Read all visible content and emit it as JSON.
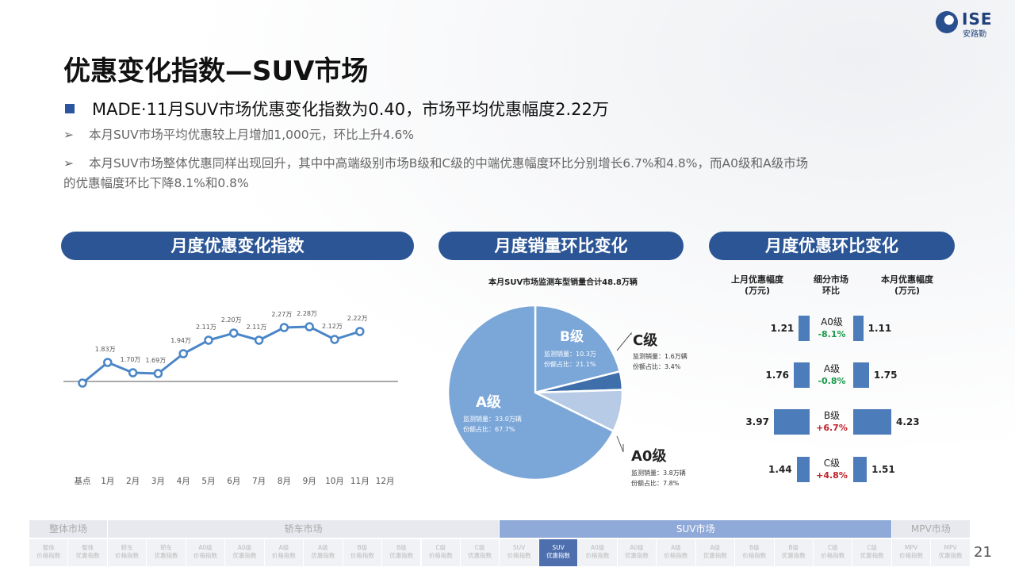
{
  "logo": {
    "brand": "ISE",
    "sub": "安路勤"
  },
  "title": "优惠变化指数—SUV市场",
  "headline": "MADE·11月SUV市场优惠变化指数为0.40，市场平均优惠幅度2.22万",
  "bullets": [
    "本月SUV市场平均优惠较上月增加1,000元，环比上升4.6%",
    "本月SUV市场整体优惠同样出现回升，其中中高端级别市场B级和C级的中端优惠幅度环比分别增长6.7%和4.8%，而A0级和A级市场",
    "的优惠幅度环比下降8.1%和0.8%"
  ],
  "sections": {
    "monthly_index": "月度优惠变化指数",
    "monthly_sales": "月度销量环比变化",
    "monthly_discount": "月度优惠环比变化"
  },
  "chart_data": {
    "type": "line",
    "categories": [
      "基点",
      "1月",
      "2月",
      "3月",
      "4月",
      "5月",
      "6月",
      "7月",
      "8月",
      "9月",
      "10月",
      "11月",
      "12月"
    ],
    "values": [
      1.57,
      1.83,
      1.7,
      1.69,
      1.94,
      2.11,
      2.2,
      2.11,
      2.27,
      2.28,
      2.12,
      2.22,
      null
    ],
    "labels": [
      "",
      "1.83万",
      "1.70万",
      "1.69万",
      "1.94万",
      "2.11万",
      "2.20万",
      "2.11万",
      "2.27万",
      "2.28万",
      "2.12万",
      "2.22万",
      ""
    ],
    "color": "#4a86c7"
  },
  "pie": {
    "caption": "本月SUV市场监测车型销量合计48.8万辆",
    "info_keys": {
      "sales": "监测销量：",
      "share": "份额占比："
    },
    "segments": [
      {
        "name": "B级",
        "sales": "10.3万",
        "share": "21.1%",
        "color": "#7aa6d8"
      },
      {
        "name": "C级",
        "sales": "1.6万辆",
        "share": "3.4%",
        "color": "#3f6faa"
      },
      {
        "name": "A0级",
        "sales": "3.8万辆",
        "share": "7.8%",
        "color": "#b7cbe6"
      },
      {
        "name": "A级",
        "sales": "33.0万辆",
        "share": "67.7%",
        "color": "#7aa6d8"
      }
    ]
  },
  "discount": {
    "headers": {
      "last": "上月优惠幅度\n(万元)",
      "segment": "细分市场\n环比",
      "current": "本月优惠幅度\n(万元)"
    },
    "rows": [
      {
        "name": "A0级",
        "pct": "-8.1%",
        "dir": "neg",
        "last": 1.21,
        "current": 1.11,
        "last_label": "1.21",
        "current_label": "1.11"
      },
      {
        "name": "A级",
        "pct": "-0.8%",
        "dir": "neg",
        "last": 1.76,
        "current": 1.75,
        "last_label": "1.76",
        "current_label": "1.75"
      },
      {
        "name": "B级",
        "pct": "+6.7%",
        "dir": "pos",
        "last": 3.97,
        "current": 4.23,
        "last_label": "3.97",
        "current_label": "4.23"
      },
      {
        "name": "C级",
        "pct": "+4.8%",
        "dir": "pos",
        "last": 1.44,
        "current": 1.51,
        "last_label": "1.44",
        "current_label": "1.51"
      }
    ]
  },
  "nav": {
    "categories": [
      {
        "label": "整体市场",
        "active": false
      },
      {
        "label": "轿车市场",
        "active": false
      },
      {
        "label": "SUV市场",
        "active": true
      },
      {
        "label": "MPV市场",
        "active": false
      }
    ],
    "items": [
      {
        "label": "整体\n价格指数",
        "active": false
      },
      {
        "label": "整体\n优惠指数",
        "active": false
      },
      {
        "label": "轿车\n价格指数",
        "active": false
      },
      {
        "label": "轿车\n优惠指数",
        "active": false
      },
      {
        "label": "A0级\n价格指数",
        "active": false
      },
      {
        "label": "A0级\n优惠指数",
        "active": false
      },
      {
        "label": "A级\n价格指数",
        "active": false
      },
      {
        "label": "A级\n优惠指数",
        "active": false
      },
      {
        "label": "B级\n价格指数",
        "active": false
      },
      {
        "label": "B级\n优惠指数",
        "active": false
      },
      {
        "label": "C级\n价格指数",
        "active": false
      },
      {
        "label": "C级\n优惠指数",
        "active": false
      },
      {
        "label": "SUV\n价格指数",
        "active": false
      },
      {
        "label": "SUV\n优惠指数",
        "active": true
      },
      {
        "label": "A0级\n价格指数",
        "active": false
      },
      {
        "label": "A0级\n优惠指数",
        "active": false
      },
      {
        "label": "A级\n价格指数",
        "active": false
      },
      {
        "label": "A级\n优惠指数",
        "active": false
      },
      {
        "label": "B级\n价格指数",
        "active": false
      },
      {
        "label": "B级\n优惠指数",
        "active": false
      },
      {
        "label": "C级\n价格指数",
        "active": false
      },
      {
        "label": "C级\n优惠指数",
        "active": false
      },
      {
        "label": "MPV\n价格指数",
        "active": false
      },
      {
        "label": "MPV\n优惠指数",
        "active": false
      }
    ]
  },
  "page_number": "21"
}
